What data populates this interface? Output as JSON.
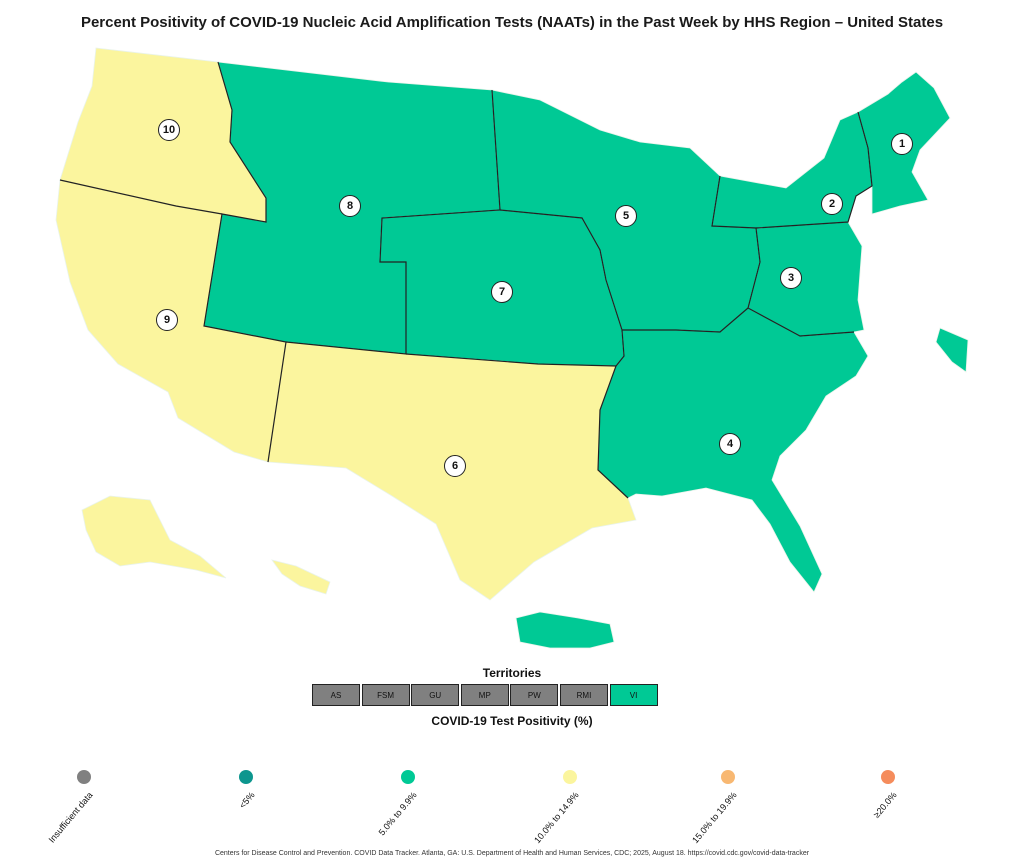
{
  "title": "Percent Positivity of COVID-19 Nucleic Acid Amplification Tests (NAATs) in the Past Week by HHS Region – United States",
  "colors": {
    "insufficient": "#808080",
    "lt5": "#0d968e",
    "r5to9": "#00c995",
    "r10to14": "#fbf59e",
    "r15to19": "#f8b872",
    "gte20": "#f58c5c"
  },
  "regions": [
    {
      "id": "1",
      "label": "1",
      "category": "5.0% to 9.9%"
    },
    {
      "id": "2",
      "label": "2",
      "category": "5.0% to 9.9%"
    },
    {
      "id": "3",
      "label": "3",
      "category": "5.0% to 9.9%"
    },
    {
      "id": "4",
      "label": "4",
      "category": "5.0% to 9.9%"
    },
    {
      "id": "5",
      "label": "5",
      "category": "5.0% to 9.9%"
    },
    {
      "id": "6",
      "label": "6",
      "category": "10.0% to 14.9%"
    },
    {
      "id": "7",
      "label": "7",
      "category": "5.0% to 9.9%"
    },
    {
      "id": "8",
      "label": "8",
      "category": "5.0% to 9.9%"
    },
    {
      "id": "9",
      "label": "9",
      "category": "10.0% to 14.9%"
    },
    {
      "id": "10",
      "label": "10",
      "category": "10.0% to 14.9%"
    }
  ],
  "territories": {
    "title": "Territories",
    "items": [
      {
        "label": "AS",
        "color": "#808080"
      },
      {
        "label": "FSM",
        "color": "#808080"
      },
      {
        "label": "GU",
        "color": "#808080"
      },
      {
        "label": "MP",
        "color": "#808080"
      },
      {
        "label": "PW",
        "color": "#808080"
      },
      {
        "label": "RMI",
        "color": "#808080"
      },
      {
        "label": "VI",
        "color": "#00c995"
      }
    ]
  },
  "legend": {
    "title": "COVID-19 Test Positivity (%)",
    "items": [
      {
        "label": "Insufficient data",
        "color": "#808080"
      },
      {
        "label": "<5%",
        "color": "#0d968e"
      },
      {
        "label": "5.0% to 9.9%",
        "color": "#00c995"
      },
      {
        "label": "10.0% to 14.9%",
        "color": "#fbf59e"
      },
      {
        "label": "15.0% to 19.9%",
        "color": "#f8b872"
      },
      {
        "label": "≥20.0%",
        "color": "#f58c5c"
      }
    ]
  },
  "citation": "Centers for Disease Control and Prevention. COVID Data Tracker. Atlanta, GA: U.S. Department of Health and Human Services, CDC; 2025, August 18. https://covid.cdc.gov/covid-data-tracker"
}
